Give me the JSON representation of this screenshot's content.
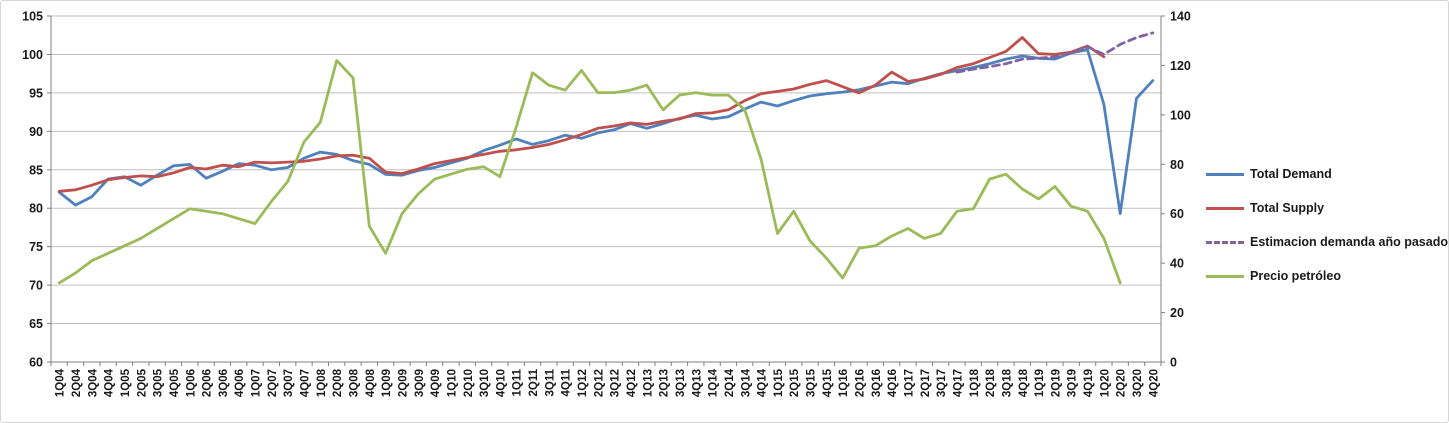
{
  "chart_data": {
    "type": "line",
    "title": "",
    "legend_position": "right",
    "grid": true,
    "categories": [
      "1Q04",
      "2Q04",
      "3Q04",
      "4Q04",
      "1Q05",
      "2Q05",
      "3Q05",
      "4Q05",
      "1Q06",
      "2Q06",
      "3Q06",
      "4Q06",
      "1Q07",
      "2Q07",
      "3Q07",
      "4Q07",
      "1Q08",
      "2Q08",
      "3Q08",
      "4Q08",
      "1Q09",
      "2Q09",
      "3Q09",
      "4Q09",
      "1Q10",
      "2Q10",
      "3Q10",
      "4Q10",
      "1Q11",
      "2Q11",
      "3Q11",
      "4Q11",
      "1Q12",
      "2Q12",
      "3Q12",
      "4Q12",
      "1Q13",
      "2Q13",
      "3Q13",
      "4Q13",
      "1Q14",
      "2Q14",
      "3Q14",
      "4Q14",
      "1Q15",
      "2Q15",
      "3Q15",
      "4Q15",
      "1Q16",
      "2Q16",
      "3Q16",
      "4Q16",
      "1Q17",
      "2Q17",
      "3Q17",
      "4Q17",
      "1Q18",
      "2Q18",
      "3Q18",
      "4Q18",
      "1Q19",
      "2Q19",
      "3Q19",
      "4Q19",
      "1Q20",
      "2Q20",
      "3Q20",
      "4Q20"
    ],
    "axes": {
      "left": {
        "min": 60,
        "max": 105,
        "step": 5,
        "ticks": [
          60,
          65,
          70,
          75,
          80,
          85,
          90,
          95,
          100,
          105
        ]
      },
      "right": {
        "min": 0,
        "max": 140,
        "step": 20,
        "ticks": [
          0,
          20,
          40,
          60,
          80,
          100,
          120,
          140
        ]
      }
    },
    "series": [
      {
        "name": "Total Demand",
        "color": "#4F81BD",
        "style": "solid",
        "axis": "left",
        "values": [
          82.1,
          80.4,
          81.5,
          83.8,
          84.1,
          83.0,
          84.3,
          85.5,
          85.7,
          83.9,
          84.8,
          85.8,
          85.6,
          85.0,
          85.3,
          86.5,
          87.3,
          87.0,
          86.2,
          85.7,
          84.4,
          84.3,
          84.9,
          85.3,
          85.9,
          86.5,
          87.5,
          88.2,
          89.0,
          88.3,
          88.8,
          89.5,
          89.1,
          89.8,
          90.2,
          91.0,
          90.4,
          91.0,
          91.7,
          92.1,
          91.6,
          91.9,
          92.9,
          93.8,
          93.3,
          94.0,
          94.6,
          94.9,
          95.1,
          95.4,
          95.9,
          96.4,
          96.2,
          96.9,
          97.5,
          97.9,
          98.3,
          98.8,
          99.4,
          99.8,
          99.5,
          99.4,
          100.2,
          100.6,
          93.5,
          79.3,
          94.3,
          96.6
        ]
      },
      {
        "name": "Total Supply",
        "color": "#C0504D",
        "style": "solid",
        "axis": "left",
        "values": [
          82.2,
          82.4,
          83.0,
          83.7,
          84.0,
          84.2,
          84.1,
          84.6,
          85.3,
          85.1,
          85.6,
          85.4,
          86.0,
          85.9,
          86.0,
          86.1,
          86.4,
          86.8,
          86.9,
          86.5,
          84.7,
          84.5,
          85.1,
          85.8,
          86.2,
          86.6,
          87.0,
          87.4,
          87.6,
          87.9,
          88.3,
          88.9,
          89.6,
          90.4,
          90.7,
          91.1,
          90.9,
          91.3,
          91.6,
          92.3,
          92.4,
          92.8,
          94.0,
          94.9,
          95.2,
          95.5,
          96.1,
          96.6,
          95.8,
          95.0,
          96.0,
          97.7,
          96.5,
          96.8,
          97.4,
          98.3,
          98.8,
          99.6,
          100.4,
          102.2,
          100.1,
          100.0,
          100.3,
          101.1,
          99.7,
          null,
          null,
          null
        ]
      },
      {
        "name": "Estimacion demanda año pasado",
        "color": "#8064A2",
        "style": "dashed",
        "axis": "left",
        "values": [
          null,
          null,
          null,
          null,
          null,
          null,
          null,
          null,
          null,
          null,
          null,
          null,
          null,
          null,
          null,
          null,
          null,
          null,
          null,
          null,
          null,
          null,
          null,
          null,
          null,
          null,
          null,
          null,
          null,
          null,
          null,
          null,
          null,
          null,
          null,
          null,
          null,
          null,
          null,
          null,
          null,
          null,
          null,
          null,
          null,
          null,
          null,
          null,
          null,
          null,
          null,
          null,
          null,
          null,
          null,
          97.7,
          98.1,
          98.4,
          98.8,
          99.4,
          99.5,
          99.7,
          100.2,
          101.0,
          100.0,
          101.3,
          102.2,
          102.8
        ]
      },
      {
        "name": "Precio petróleo",
        "color": "#9BBB59",
        "style": "solid",
        "axis": "right",
        "values": [
          32,
          36,
          41,
          44,
          47,
          50,
          54,
          58,
          62,
          61,
          60,
          58,
          56,
          65,
          73,
          89,
          97,
          122,
          115,
          55,
          44,
          60,
          68,
          74,
          76,
          78,
          79,
          75,
          95,
          117,
          112,
          110,
          118,
          109,
          109,
          110,
          112,
          102,
          108,
          109,
          108,
          108,
          102,
          82,
          52,
          61,
          49,
          42,
          34,
          46,
          47,
          51,
          54,
          50,
          52,
          61,
          62,
          74,
          76,
          70,
          66,
          71,
          63,
          61,
          50,
          32,
          null,
          null
        ]
      }
    ]
  },
  "legend": {
    "items": [
      "Total Demand",
      "Total Supply",
      "Estimacion demanda año pasado",
      "Precio petróleo"
    ]
  }
}
